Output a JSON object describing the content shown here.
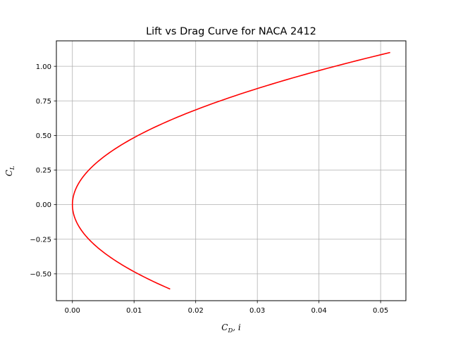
{
  "chart_data": {
    "type": "line",
    "title": "Lift vs Drag Curve for NACA 2412",
    "xlabel": "C_D, i",
    "ylabel": "C_L",
    "xlim": [
      -0.0026,
      0.0541
    ],
    "ylim": [
      -0.694,
      1.184
    ],
    "grid": true,
    "xticks": [
      0.0,
      0.01,
      0.02,
      0.03,
      0.04,
      0.05
    ],
    "xtick_labels": [
      "0.00",
      "0.01",
      "0.02",
      "0.03",
      "0.04",
      "0.05"
    ],
    "yticks": [
      -0.5,
      -0.25,
      0.0,
      0.25,
      0.5,
      0.75,
      1.0
    ],
    "ytick_labels": [
      "−0.50",
      "−0.25",
      "0.00",
      "0.25",
      "0.50",
      "0.75",
      "1.00"
    ],
    "series": [
      {
        "color": "#ff0000",
        "cl_range": [
          -0.61,
          1.1
        ],
        "cd_over_cl_squared": 0.0426,
        "x": [
          0.01585,
          0.01172,
          0.00828,
          0.00545,
          0.00327,
          0.0017,
          0.00065,
          0.00011,
          0.0,
          0.00011,
          0.00065,
          0.0017,
          0.00327,
          0.00545,
          0.00828,
          0.01172,
          0.01585,
          0.02066,
          0.02613,
          0.0323,
          0.03911,
          0.04658,
          0.05155
        ],
        "y": [
          -0.61,
          -0.524,
          -0.441,
          -0.358,
          -0.277,
          -0.2,
          -0.124,
          -0.051,
          0.0,
          0.051,
          0.124,
          0.2,
          0.277,
          0.358,
          0.441,
          0.524,
          0.61,
          0.696,
          0.783,
          0.871,
          0.958,
          1.046,
          1.1
        ]
      }
    ]
  }
}
